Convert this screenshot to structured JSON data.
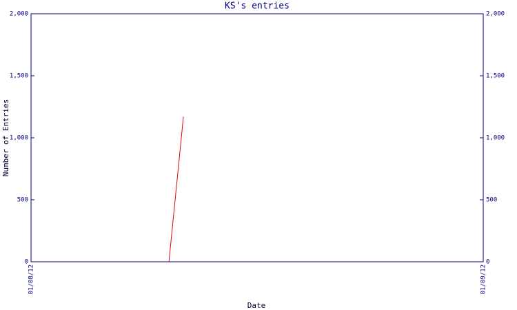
{
  "chart_data": {
    "type": "line",
    "title": "KS's entries",
    "xlabel": "Date",
    "ylabel": "Number of Entries",
    "x": [
      0.305,
      0.337
    ],
    "series": [
      {
        "name": "KS",
        "color": "#e00000",
        "values": [
          0,
          1170
        ]
      }
    ],
    "xlim": [
      0,
      1
    ],
    "xticks": [
      {
        "value": 0,
        "label": "01/08/12"
      },
      {
        "value": 1,
        "label": "01/09/12"
      }
    ],
    "ylim": [
      0,
      2000
    ],
    "yticks": [
      0,
      500,
      {
        "value": 1000,
        "label": "1,000"
      },
      {
        "value": 1500,
        "label": "1,500"
      },
      {
        "value": 2000,
        "label": "2,000"
      }
    ],
    "axis_color": "#000080"
  }
}
